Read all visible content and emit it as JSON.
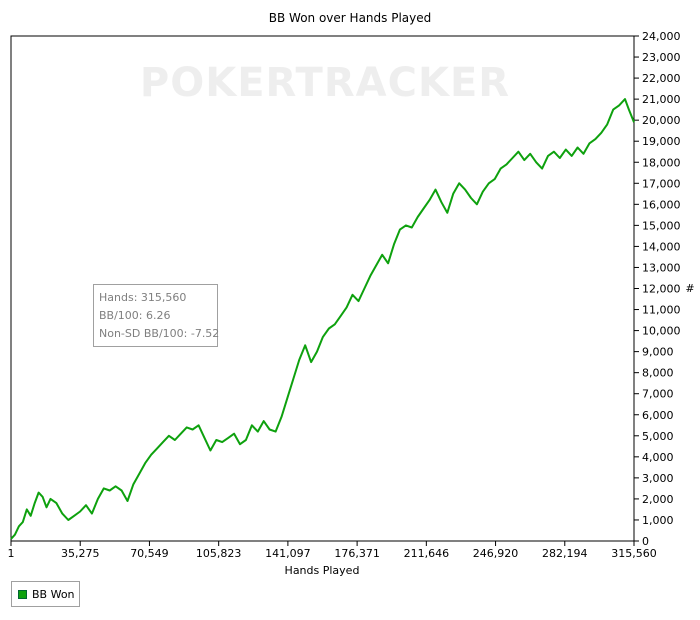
{
  "chart_data": {
    "type": "line",
    "title": "BB Won over Hands Played",
    "xlabel": "Hands Played",
    "ylabel": "#",
    "x_ticks": [
      "1",
      "35,275",
      "70,549",
      "105,823",
      "141,097",
      "176,371",
      "211,646",
      "246,920",
      "282,194",
      "315,560"
    ],
    "y_ticks": [
      "0",
      "1,000",
      "2,000",
      "3,000",
      "4,000",
      "5,000",
      "6,000",
      "7,000",
      "8,000",
      "9,000",
      "10,000",
      "11,000",
      "12,000",
      "13,000",
      "14,000",
      "15,000",
      "16,000",
      "17,000",
      "18,000",
      "19,000",
      "20,000",
      "21,000",
      "22,000",
      "23,000",
      "24,000"
    ],
    "xlim": [
      1,
      315560
    ],
    "ylim": [
      0,
      24000
    ],
    "grid": false,
    "legend": "bottom-left",
    "series": [
      {
        "name": "BB Won",
        "color": "#0ea10e",
        "x": [
          1,
          2000,
          4000,
          6000,
          8000,
          10000,
          12000,
          14000,
          16000,
          18000,
          20000,
          23000,
          26000,
          29000,
          32000,
          35000,
          38000,
          41000,
          44000,
          47000,
          50000,
          53000,
          56000,
          59000,
          62000,
          65000,
          68000,
          71000,
          74000,
          77000,
          80000,
          83000,
          86000,
          89000,
          92000,
          95000,
          98000,
          101000,
          104000,
          107000,
          110000,
          113000,
          116000,
          119000,
          122000,
          125000,
          128000,
          131000,
          134000,
          137000,
          140000,
          143000,
          146000,
          149000,
          152000,
          155000,
          158000,
          161000,
          164000,
          167000,
          170000,
          173000,
          176000,
          179000,
          182000,
          185000,
          188000,
          191000,
          194000,
          197000,
          200000,
          203000,
          206000,
          209000,
          212000,
          215000,
          218000,
          221000,
          224000,
          227000,
          230000,
          233000,
          236000,
          239000,
          242000,
          245000,
          248000,
          251000,
          254000,
          257000,
          260000,
          263000,
          266000,
          269000,
          272000,
          275000,
          278000,
          281000,
          284000,
          287000,
          290000,
          293000,
          296000,
          299000,
          302000,
          305000,
          308000,
          311000,
          313000,
          315560
        ],
        "values": [
          100,
          300,
          700,
          900,
          1500,
          1200,
          1800,
          2300,
          2100,
          1600,
          2000,
          1800,
          1300,
          1000,
          1200,
          1400,
          1700,
          1300,
          2000,
          2500,
          2400,
          2600,
          2400,
          1900,
          2700,
          3200,
          3700,
          4100,
          4400,
          4700,
          5000,
          4800,
          5100,
          5400,
          5300,
          5500,
          4900,
          4300,
          4800,
          4700,
          4900,
          5100,
          4600,
          4800,
          5500,
          5200,
          5700,
          5300,
          5200,
          5900,
          6800,
          7700,
          8600,
          9300,
          8500,
          9000,
          9700,
          10100,
          10300,
          10700,
          11100,
          11700,
          11400,
          12000,
          12600,
          13100,
          13600,
          13200,
          14100,
          14800,
          15000,
          14900,
          15400,
          15800,
          16200,
          16700,
          16100,
          15600,
          16500,
          17000,
          16700,
          16300,
          16000,
          16600,
          17000,
          17200,
          17700,
          17900,
          18200,
          18500,
          18100,
          18400,
          18000,
          17700,
          18300,
          18500,
          18200,
          18600,
          18300,
          18700,
          18400,
          18900,
          19100,
          19400,
          19800,
          20500,
          20700,
          21000,
          20500,
          19900
        ]
      }
    ],
    "info_box": {
      "hands": "Hands: 315,560",
      "bb100": "BB/100: 6.26",
      "nonsd": "Non-SD BB/100: -7.52"
    },
    "watermark": "POKERTRACKER"
  }
}
